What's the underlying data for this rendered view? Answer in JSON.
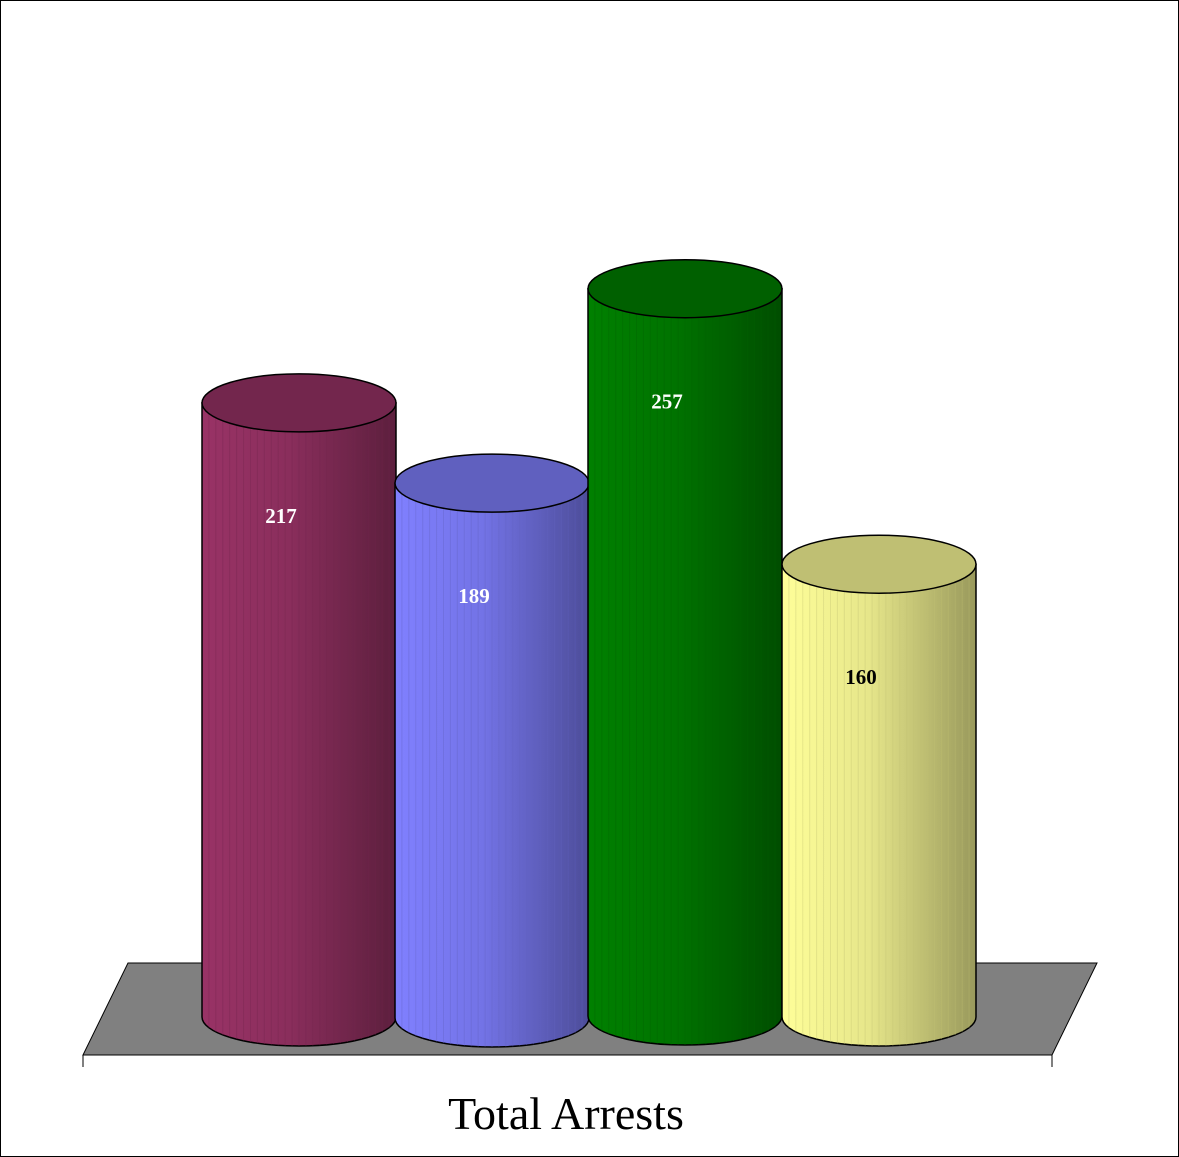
{
  "chart_data": {
    "type": "bar",
    "style": "3d-cylinder",
    "categories": [
      "Total Arrests"
    ],
    "series": [
      {
        "values": [
          217
        ],
        "color": "#993366",
        "label_color": "#ffffff"
      },
      {
        "values": [
          189
        ],
        "color": "#8080ff",
        "label_color": "#ffffff"
      },
      {
        "values": [
          257
        ],
        "color": "#008000",
        "label_color": "#ffffff"
      },
      {
        "values": [
          160
        ],
        "color": "#ffff99",
        "label_color": "#000000"
      }
    ],
    "data_labels": [
      "217",
      "189",
      "257",
      "160"
    ],
    "floor_color": "#808080",
    "legend": "none",
    "grid": false,
    "title": "",
    "xlabel": "",
    "ylabel": ""
  }
}
